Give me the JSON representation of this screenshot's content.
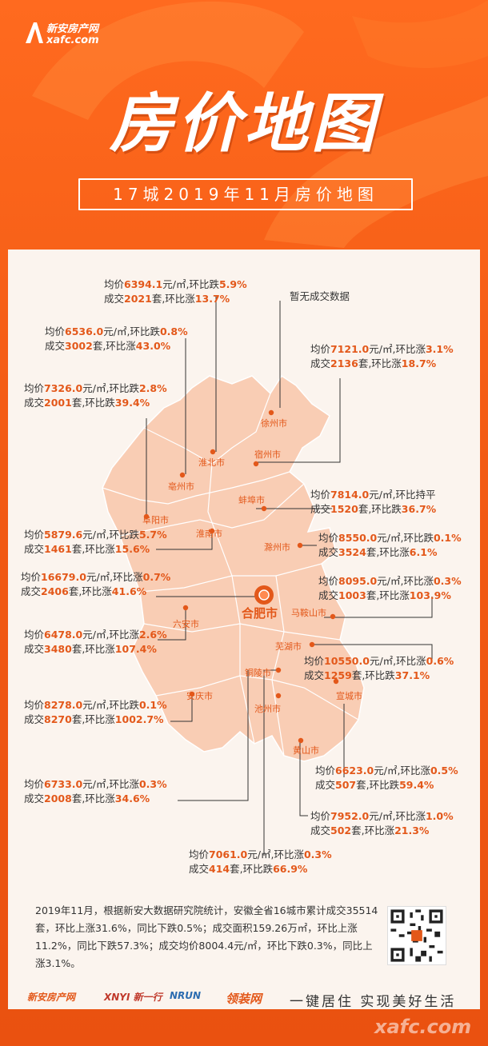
{
  "header": {
    "logo_cn": "新安房产网",
    "logo_en": "xafc.com",
    "title": "房价地图",
    "subtitle": "17城2019年11月房价地图"
  },
  "map": {
    "hub_city": "合肥市",
    "cities": [
      "徐州市",
      "宿州市",
      "淮北市",
      "亳州市",
      "蚌埠市",
      "阜阳市",
      "淮南市",
      "滁州市",
      "马鞍山市",
      "六安市",
      "芜湖市",
      "铜陵市",
      "安庆市",
      "宣城市",
      "池州市",
      "黄山市"
    ]
  },
  "labels": {
    "no_data": "暂无成交数据",
    "huaibei": {
      "l1": "均价",
      "v1": "6394.1",
      "u1": "元/㎡,环比跌",
      "c1": "5.9%",
      "l2": "成交",
      "v2": "2021",
      "u2": "套,环比涨",
      "c2": "13.7%"
    },
    "bozhou": {
      "l1": "均价",
      "v1": "6536.0",
      "u1": "元/㎡,环比跌",
      "c1": "0.8%",
      "l2": "成交",
      "v2": "3002",
      "u2": "套,环比涨",
      "c2": "43.0%"
    },
    "suzhou": {
      "l1": "均价",
      "v1": "7121.0",
      "u1": "元/㎡,环比涨",
      "c1": "3.1%",
      "l2": "成交",
      "v2": "2136",
      "u2": "套,环比涨",
      "c2": "18.7%"
    },
    "fuyang": {
      "l1": "均价",
      "v1": "7326.0",
      "u1": "元/㎡,环比跌",
      "c1": "2.8%",
      "l2": "成交",
      "v2": "2001",
      "u2": "套,环比跌",
      "c2": "39.4%"
    },
    "bengbu": {
      "l1": "均价",
      "v1": "7814.0",
      "u1": "元/㎡,环比持平",
      "c1": "",
      "l2": "成交",
      "v2": "1520",
      "u2": "套,环比跌",
      "c2": "36.7%"
    },
    "huainan": {
      "l1": "均价",
      "v1": "5879.6",
      "u1": "元/㎡,环比跌",
      "c1": "5.7%",
      "l2": "成交",
      "v2": "1461",
      "u2": "套,环比涨",
      "c2": "15.6%"
    },
    "chuzhou": {
      "l1": "均价",
      "v1": "8550.0",
      "u1": "元/㎡,环比跌",
      "c1": "0.1%",
      "l2": "成交",
      "v2": "3524",
      "u2": "套,环比涨",
      "c2": "6.1%"
    },
    "hefei": {
      "l1": "均价",
      "v1": "16679.0",
      "u1": "元/㎡,环比涨",
      "c1": "0.7%",
      "l2": "成交",
      "v2": "2406",
      "u2": "套,环比涨",
      "c2": "41.6%"
    },
    "maanshan": {
      "l1": "均价",
      "v1": "8095.0",
      "u1": "元/㎡,环比涨",
      "c1": "0.3%",
      "l2": "成交",
      "v2": "1003",
      "u2": "套,环比涨",
      "c2": "103.9%"
    },
    "luan": {
      "l1": "均价",
      "v1": "6478.0",
      "u1": "元/㎡,环比涨",
      "c1": "2.6%",
      "l2": "成交",
      "v2": "3480",
      "u2": "套,环比涨",
      "c2": "107.4%"
    },
    "wuhu": {
      "l1": "均价",
      "v1": "10550.0",
      "u1": "元/㎡,环比涨",
      "c1": "0.6%",
      "l2": "成交",
      "v2": "1259",
      "u2": "套,环比跌",
      "c2": "37.1%"
    },
    "anqing": {
      "l1": "均价",
      "v1": "8278.0",
      "u1": "元/㎡,环比跌",
      "c1": "0.1%",
      "l2": "成交",
      "v2": "8270",
      "u2": "套,环比涨",
      "c2": "1002.7%"
    },
    "xuancheng": {
      "l1": "均价",
      "v1": "6623.0",
      "u1": "元/㎡,环比涨",
      "c1": "0.5%",
      "l2": "成交",
      "v2": "507",
      "u2": "套,环比跌",
      "c2": "59.4%"
    },
    "tongling": {
      "l1": "均价",
      "v1": "6733.0",
      "u1": "元/㎡,环比涨",
      "c1": "0.3%",
      "l2": "成交",
      "v2": "2008",
      "u2": "套,环比涨",
      "c2": "34.6%"
    },
    "huangshan": {
      "l1": "均价",
      "v1": "7952.0",
      "u1": "元/㎡,环比涨",
      "c1": "1.0%",
      "l2": "成交",
      "v2": "502",
      "u2": "套,环比涨",
      "c2": "21.3%"
    },
    "chizhou": {
      "l1": "均价",
      "v1": "7061.0",
      "u1": "元/㎡,环比涨",
      "c1": "0.3%",
      "l2": "成交",
      "v2": "414",
      "u2": "套,环比跌",
      "c2": "66.9%"
    }
  },
  "note": "2019年11月，根据新安大数据研究院统计，安徽全省16城市累计成交35514套，环比上涨31.6%，同比下跌0.5%；成交面积159.26万㎡，环比上涨11.2%，同比下跌57.3%；成交均价8004.4元/㎡，环比下跌0.3%，同比上涨3.1%。",
  "footer": {
    "logos": [
      "新安房产网",
      "XNYI 新一行",
      "NRUN",
      "领装网"
    ],
    "slogan": "一键居住 实现美好生活",
    "watermark": "xafc.com"
  },
  "colors": {
    "brand": "#e3581a",
    "bg_orange": "#f25a13",
    "panel": "#fbf4ee",
    "province": "#f9cdb4",
    "border": "#ffffff"
  }
}
